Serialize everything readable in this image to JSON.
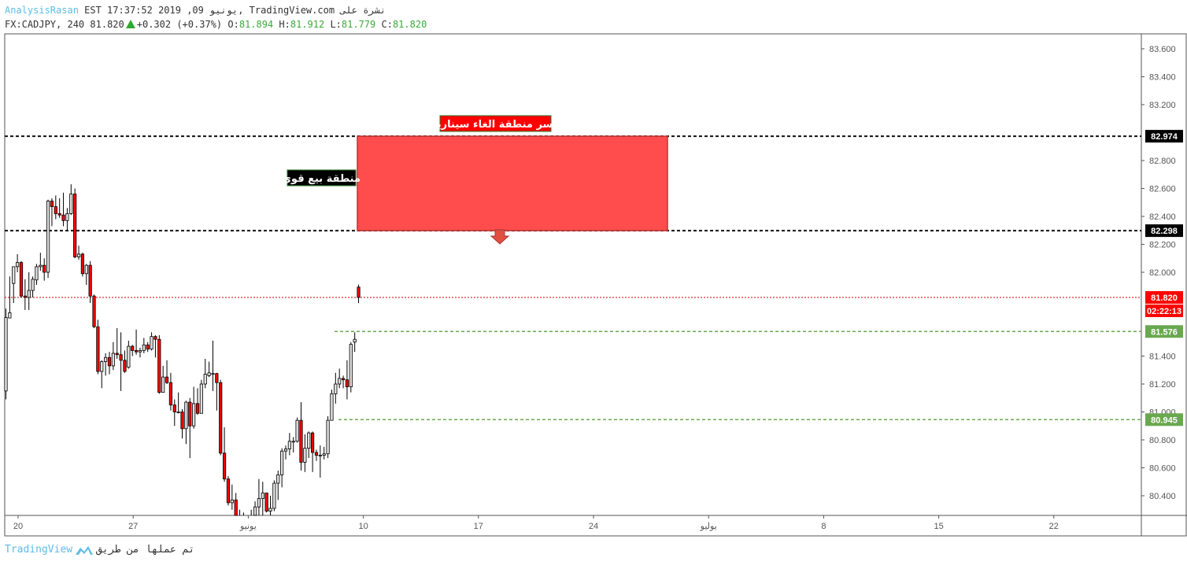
{
  "header": {
    "author": "AnalysisRasan",
    "published": "EST 17:37:52 2019 ,09 يونيو",
    "site": ", TradingView.com",
    "published_on": "نشرة على",
    "symbol": "FX:CADJPY, 240",
    "last": "81.820",
    "change": "+0.302 (+0.37%)",
    "o_label": "O:",
    "o": "81.894",
    "h_label": "H:",
    "h": "81.912",
    "l_label": "L:",
    "l": "81.779",
    "c_label": "C:",
    "c": "81.820"
  },
  "colors": {
    "up": "#e0e0e0",
    "down": "#ff0000",
    "zone": "#ff4d4d",
    "green": "#6aa84f",
    "accent": "#5cbde6"
  },
  "y_axis": {
    "ticks": [
      "83.600",
      "83.400",
      "83.200",
      "82.800",
      "82.600",
      "82.400",
      "82.200",
      "82.000",
      "81.400",
      "81.200",
      "81.000",
      "80.800",
      "80.600",
      "80.400"
    ]
  },
  "x_axis": {
    "ticks": [
      "20",
      "27",
      "يونيو",
      "10",
      "17",
      "24",
      "يوليو",
      "8",
      "15",
      "22"
    ]
  },
  "price_labels": [
    {
      "value": "82.974",
      "bg": "#000000"
    },
    {
      "value": "82.298",
      "bg": "#000000"
    },
    {
      "value": "81.820",
      "bg": "#ff0000"
    },
    {
      "value": "81.576",
      "bg": "#6aa84f"
    },
    {
      "value": "80.945",
      "bg": "#6aa84f"
    }
  ],
  "countdown": "02:22:13",
  "annotations": {
    "invalidation": "كسر منطقة الغاء سيناريو",
    "sell_zone": "منطقة بيع قوي"
  },
  "footer": {
    "made_by": "تم عملها من طريق",
    "brand": "TradingView"
  },
  "chart_data": {
    "type": "candlestick",
    "symbol": "FX:CADJPY",
    "interval": "240",
    "ylim": [
      80.25,
      83.7
    ],
    "ohlc": [
      [
        81.15,
        81.74,
        81.09,
        81.676
      ],
      [
        81.673,
        81.97,
        81.67,
        81.71
      ],
      [
        81.92,
        82.04,
        81.78,
        82.04
      ],
      [
        82.04,
        82.13,
        82.0,
        82.07
      ],
      [
        82.07,
        82.08,
        81.82,
        81.83
      ],
      [
        81.83,
        81.95,
        81.73,
        81.82
      ],
      [
        81.82,
        82.0,
        81.73,
        81.87
      ],
      [
        81.87,
        81.97,
        81.82,
        81.95
      ],
      [
        81.945,
        82.06,
        81.91,
        82.04
      ],
      [
        82.04,
        82.14,
        82.01,
        82.05
      ],
      [
        82.05,
        82.1,
        81.94,
        82.0
      ],
      [
        82.0,
        82.52,
        81.96,
        82.51
      ],
      [
        82.51,
        82.53,
        82.33,
        82.47
      ],
      [
        82.47,
        82.55,
        82.38,
        82.42
      ],
      [
        82.42,
        82.53,
        82.39,
        82.41
      ],
      [
        82.41,
        82.57,
        82.33,
        82.37
      ],
      [
        82.37,
        82.46,
        82.3,
        82.42
      ],
      [
        82.42,
        82.63,
        82.41,
        82.56
      ],
      [
        82.56,
        82.6,
        82.1,
        82.11
      ],
      [
        82.11,
        82.19,
        82.09,
        82.13
      ],
      [
        82.13,
        82.14,
        81.97,
        81.99
      ],
      [
        81.99,
        82.06,
        81.91,
        82.05
      ],
      [
        82.05,
        82.08,
        81.78,
        81.83
      ],
      [
        81.83,
        81.84,
        81.6,
        81.61
      ],
      [
        81.61,
        81.66,
        81.27,
        81.29
      ],
      [
        81.29,
        81.37,
        81.17,
        81.36
      ],
      [
        81.36,
        81.42,
        81.26,
        81.39
      ],
      [
        81.39,
        81.43,
        81.27,
        81.33
      ],
      [
        81.33,
        81.5,
        81.3,
        81.42
      ],
      [
        81.42,
        81.6,
        81.38,
        81.41
      ],
      [
        81.41,
        81.57,
        81.15,
        81.37
      ],
      [
        81.37,
        81.44,
        81.28,
        81.29
      ],
      [
        81.32,
        81.51,
        81.31,
        81.47
      ],
      [
        81.47,
        81.48,
        81.4,
        81.44
      ],
      [
        81.44,
        81.59,
        81.41,
        81.43
      ],
      [
        81.43,
        81.46,
        81.39,
        81.44
      ],
      [
        81.44,
        81.53,
        81.42,
        81.48
      ],
      [
        81.48,
        81.5,
        81.43,
        81.45
      ],
      [
        81.45,
        81.57,
        81.44,
        81.54
      ],
      [
        81.54,
        81.55,
        81.39,
        81.52
      ],
      [
        81.52,
        81.55,
        81.13,
        81.14
      ],
      [
        81.14,
        81.33,
        81.14,
        81.25
      ],
      [
        81.25,
        81.37,
        81.2,
        81.21
      ],
      [
        81.21,
        81.28,
        81.01,
        81.05
      ],
      [
        81.05,
        81.09,
        80.9,
        81.0
      ],
      [
        81.0,
        81.14,
        80.99,
        81.0
      ],
      [
        81.0,
        81.02,
        80.81,
        80.88
      ],
      [
        80.88,
        81.08,
        80.77,
        81.07
      ],
      [
        81.07,
        81.1,
        80.67,
        80.9
      ],
      [
        80.9,
        81.18,
        80.88,
        81.06
      ],
      [
        81.06,
        81.17,
        80.98,
        80.99
      ],
      [
        80.99,
        81.23,
        80.99,
        81.2
      ],
      [
        81.2,
        81.38,
        81.17,
        81.27
      ],
      [
        81.26,
        81.36,
        81.25,
        81.28
      ],
      [
        81.275,
        81.51,
        81.15,
        81.275
      ],
      [
        81.275,
        81.28,
        81.01,
        81.21
      ],
      [
        81.21,
        81.23,
        80.69,
        80.705
      ],
      [
        80.705,
        80.89,
        80.5,
        80.52
      ],
      [
        80.52,
        80.54,
        80.33,
        80.35
      ],
      [
        80.35,
        80.48,
        80.3,
        80.37
      ],
      [
        80.37,
        80.42,
        80.2,
        80.25
      ],
      [
        80.25,
        80.3,
        80.2,
        80.24
      ],
      [
        80.24,
        80.28,
        80.15,
        80.22
      ],
      [
        80.22,
        80.26,
        80.1,
        80.2
      ],
      [
        80.2,
        80.3,
        80.12,
        80.25
      ],
      [
        80.26,
        80.36,
        80.2,
        80.32
      ],
      [
        80.32,
        80.52,
        80.2,
        80.38
      ],
      [
        80.38,
        80.5,
        80.25,
        80.42
      ],
      [
        80.42,
        80.42,
        80.28,
        80.29
      ],
      [
        80.29,
        80.4,
        80.25,
        80.31
      ],
      [
        80.31,
        80.51,
        80.29,
        80.49
      ],
      [
        80.49,
        80.58,
        80.37,
        80.55
      ],
      [
        80.55,
        80.74,
        80.46,
        80.72
      ],
      [
        80.72,
        80.76,
        80.66,
        80.735
      ],
      [
        80.735,
        80.85,
        80.69,
        80.79
      ],
      [
        80.79,
        80.82,
        80.71,
        80.79
      ],
      [
        80.79,
        80.96,
        80.78,
        80.94
      ],
      [
        80.94,
        81.07,
        80.58,
        80.64
      ],
      [
        80.64,
        80.84,
        80.57,
        80.74
      ],
      [
        80.74,
        80.86,
        80.67,
        80.85
      ],
      [
        80.85,
        80.86,
        80.57,
        80.71
      ],
      [
        80.71,
        80.73,
        80.65,
        80.69
      ],
      [
        80.69,
        80.76,
        80.53,
        80.69
      ],
      [
        80.69,
        80.75,
        80.66,
        80.7
      ],
      [
        80.7,
        80.97,
        80.67,
        80.94
      ],
      [
        80.94,
        81.16,
        80.94,
        81.13
      ],
      [
        81.13,
        81.28,
        81.06,
        81.2
      ],
      [
        81.2,
        81.31,
        81.17,
        81.24
      ],
      [
        81.24,
        81.26,
        81.17,
        81.23
      ],
      [
        81.23,
        81.37,
        81.09,
        81.18
      ],
      [
        81.18,
        81.5,
        81.14,
        81.484
      ],
      [
        81.5,
        81.57,
        81.43,
        81.52
      ],
      [
        81.894,
        81.912,
        81.779,
        81.82
      ]
    ],
    "levels": [
      82.974,
      82.298,
      81.576,
      80.945
    ],
    "zone": {
      "top": 82.974,
      "bottom": 82.298
    }
  }
}
